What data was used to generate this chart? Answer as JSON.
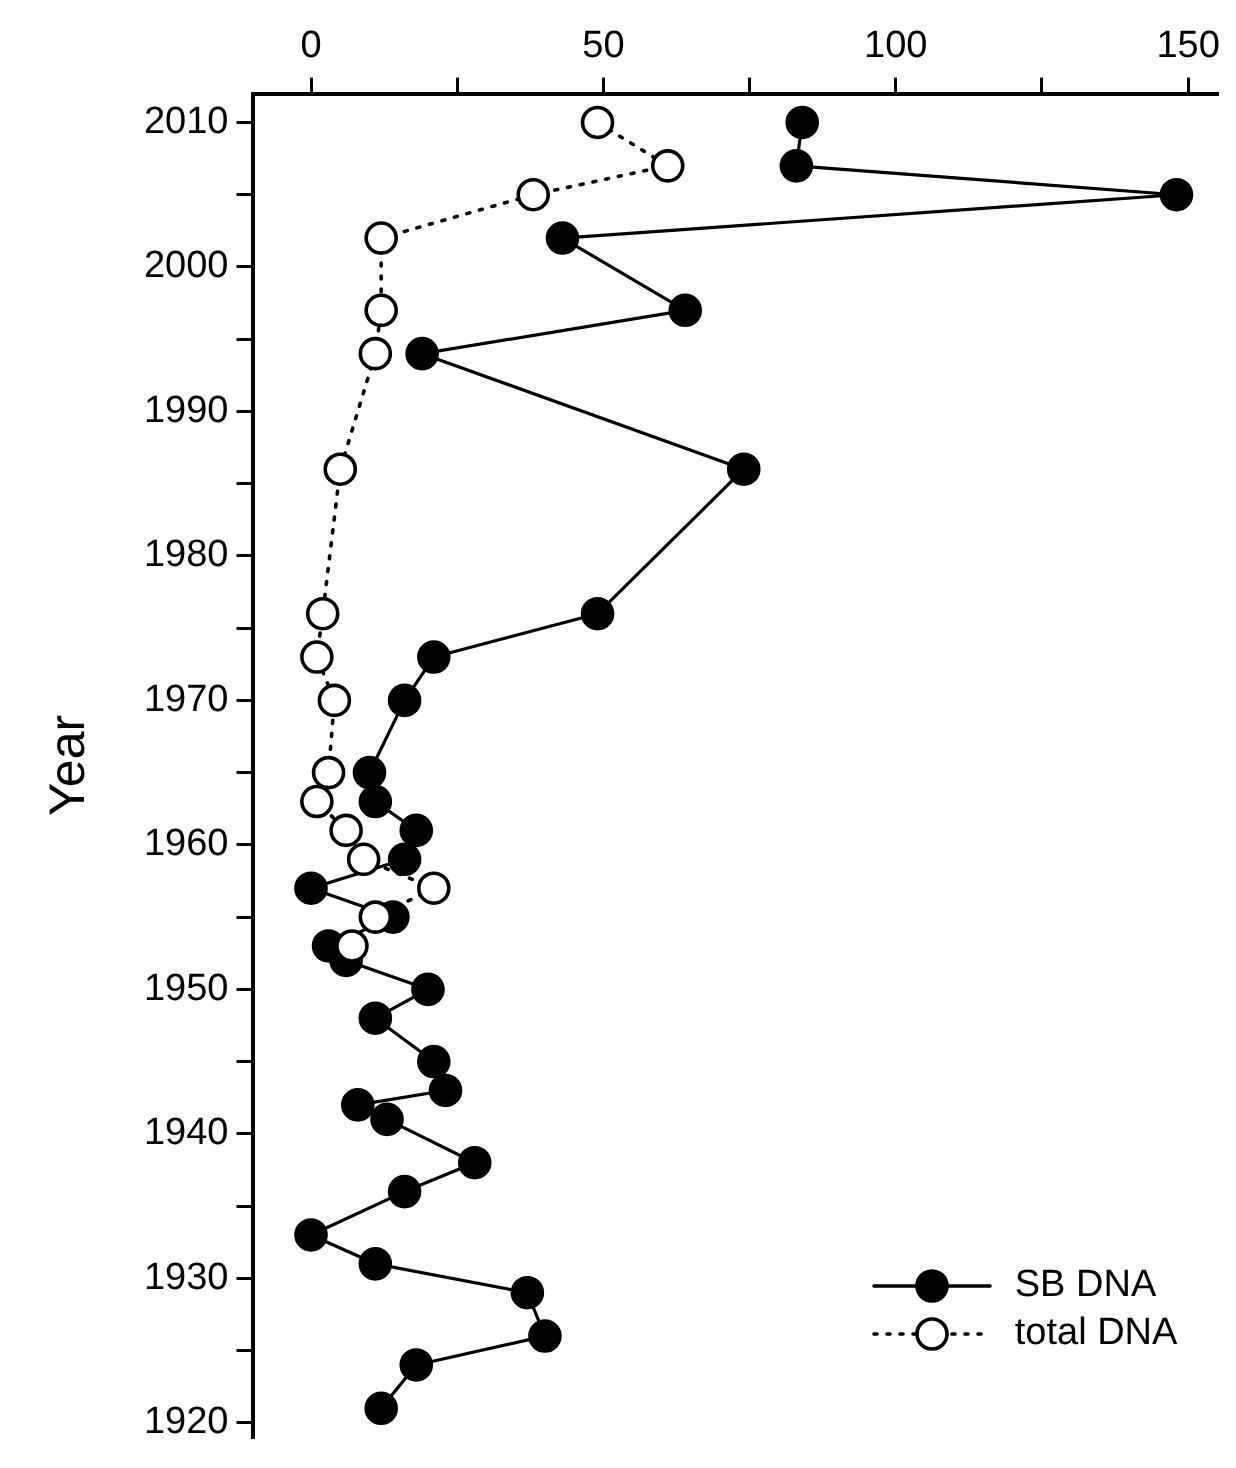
{
  "chart_data": {
    "type": "line",
    "ylabel": "Year",
    "xlim": [
      -10,
      155
    ],
    "xticks": [
      0,
      {
        "value": 25,
        "label": null
      },
      50,
      {
        "value": 75,
        "label": null
      },
      100,
      {
        "value": 125,
        "label": null
      },
      150
    ],
    "ylim": [
      1919,
      2012
    ],
    "yticks": [
      1920,
      {
        "value": 1925,
        "label": null
      },
      1930,
      {
        "value": 1935,
        "label": null
      },
      1940,
      {
        "value": 1945,
        "label": null
      },
      1950,
      {
        "value": 1955,
        "label": null
      },
      1960,
      {
        "value": 1965,
        "label": null
      },
      1970,
      {
        "value": 1975,
        "label": null
      },
      1980,
      {
        "value": 1985,
        "label": null
      },
      1990,
      {
        "value": 1995,
        "label": null
      },
      2000,
      {
        "value": 2005,
        "label": null
      },
      2010
    ],
    "grid": false,
    "legend": "bottom right",
    "marker": "circle",
    "series": [
      {
        "name": "SB DNA",
        "color": "#000000",
        "line_style": "solid",
        "x": [
          84,
          83,
          148,
          43,
          64,
          19,
          74,
          49,
          21,
          16,
          10,
          11,
          18,
          16,
          0,
          14,
          3,
          6,
          20,
          11,
          21,
          23,
          8,
          13,
          28,
          16,
          0,
          11,
          37,
          40,
          18,
          12
        ],
        "values": [
          2010,
          2007,
          2005,
          2002,
          1997,
          1994,
          1986,
          1976,
          1973,
          1970,
          1965,
          1963,
          1961,
          1959,
          1957,
          1955,
          1953,
          1952,
          1950,
          1948,
          1945,
          1943,
          1942,
          1941,
          1938,
          1936,
          1933,
          1931,
          1929,
          1926,
          1924,
          1921
        ]
      },
      {
        "name": "total DNA",
        "color": "#000000",
        "line_style": "dotted",
        "x": [
          49,
          61,
          38,
          12,
          12,
          11,
          5,
          2,
          1,
          4,
          3,
          1,
          6,
          9,
          21,
          11,
          7
        ],
        "values": [
          2010,
          2007,
          2005,
          2002,
          1997,
          1994,
          1986,
          1976,
          1973,
          1970,
          1965,
          1963,
          1961,
          1959,
          1957,
          1955,
          1953
        ]
      }
    ]
  }
}
